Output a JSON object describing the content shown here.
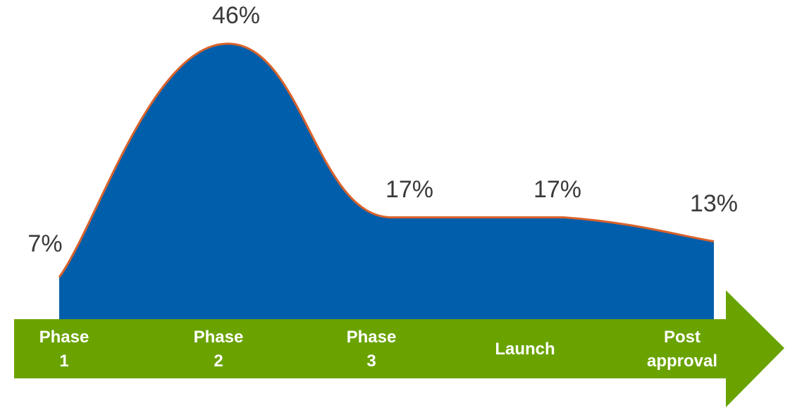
{
  "chart_data": {
    "type": "area",
    "categories": [
      "Phase 1",
      "Phase 2",
      "Phase 3",
      "Launch",
      "Post approval"
    ],
    "values": [
      7,
      46,
      17,
      17,
      13
    ],
    "value_labels": [
      "7%",
      "46%",
      "17%",
      "17%",
      "13%"
    ],
    "title": "",
    "xlabel": "",
    "ylabel": "",
    "ylim": [
      0,
      50
    ],
    "grid": false,
    "legend": "none"
  },
  "colors": {
    "area_fill": "#005EAB",
    "curve_stroke": "#D9622B",
    "arrow_fill": "#6AA300",
    "value_text": "#3a3a3a",
    "category_text": "#ffffff"
  }
}
